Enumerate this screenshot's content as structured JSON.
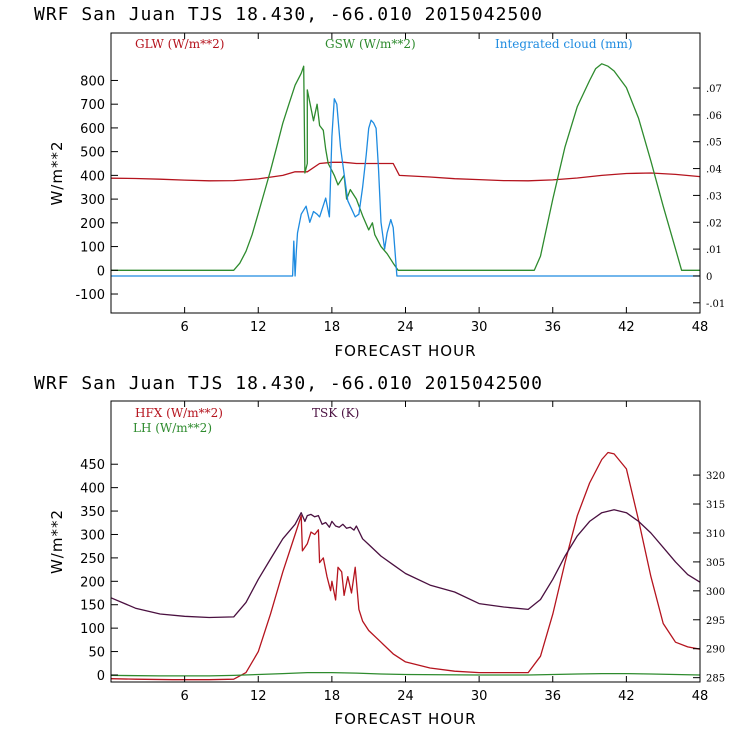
{
  "chart_data": [
    {
      "type": "line",
      "title": "WRF  San Juan TJS  18.430, -66.010  2015042500",
      "xlabel": "FORECAST HOUR",
      "ylabel": "W/m**2",
      "xlim": [
        0,
        48
      ],
      "ylim": [
        -180,
        1000
      ],
      "xticks": [
        6,
        12,
        18,
        24,
        30,
        36,
        42,
        48
      ],
      "yticks": [
        -100,
        0,
        100,
        200,
        300,
        400,
        500,
        600,
        700,
        800
      ],
      "y2lim": [
        -0.0138,
        0.0905
      ],
      "y2ticks": [
        -0.01,
        0,
        0.01,
        0.02,
        0.03,
        0.04,
        0.05,
        0.06,
        0.07
      ],
      "y2ticklabels": [
        "-.01",
        "0",
        ".01",
        ".02",
        ".03",
        ".04",
        ".05",
        ".06",
        ".07"
      ],
      "series": [
        {
          "name": "GLW (W/m**2)",
          "color": "#b5141e",
          "axis": "left",
          "points": [
            [
              0,
              388
            ],
            [
              2,
              387
            ],
            [
              4,
              384
            ],
            [
              6,
              380
            ],
            [
              8,
              377
            ],
            [
              10,
              378
            ],
            [
              12,
              385
            ],
            [
              14,
              400
            ],
            [
              15,
              415
            ],
            [
              16,
              415
            ],
            [
              17,
              450
            ],
            [
              18,
              455
            ],
            [
              19,
              455
            ],
            [
              20,
              450
            ],
            [
              21,
              450
            ],
            [
              22,
              450
            ],
            [
              23,
              450
            ],
            [
              23.5,
              400
            ],
            [
              26,
              393
            ],
            [
              28,
              386
            ],
            [
              30,
              382
            ],
            [
              32,
              378
            ],
            [
              34,
              377
            ],
            [
              36,
              381
            ],
            [
              38,
              389
            ],
            [
              40,
              400
            ],
            [
              42,
              408
            ],
            [
              44,
              410
            ],
            [
              46,
              404
            ],
            [
              48,
              395
            ]
          ]
        },
        {
          "name": "GSW (W/m**2)",
          "color": "#2e8b2e",
          "axis": "left",
          "points": [
            [
              0,
              0
            ],
            [
              10,
              0
            ],
            [
              10.5,
              30
            ],
            [
              11,
              80
            ],
            [
              11.5,
              150
            ],
            [
              12,
              240
            ],
            [
              12.5,
              330
            ],
            [
              13,
              420
            ],
            [
              13.5,
              520
            ],
            [
              14,
              620
            ],
            [
              14.5,
              700
            ],
            [
              15,
              780
            ],
            [
              15.5,
              830
            ],
            [
              15.7,
              860
            ],
            [
              15.8,
              410
            ],
            [
              16,
              450
            ],
            [
              16,
              760
            ],
            [
              16.5,
              630
            ],
            [
              16.8,
              700
            ],
            [
              17,
              610
            ],
            [
              17.3,
              590
            ],
            [
              17.5,
              510
            ],
            [
              17.7,
              450
            ],
            [
              18,
              420
            ],
            [
              18.2,
              400
            ],
            [
              18.5,
              360
            ],
            [
              19,
              400
            ],
            [
              19.2,
              300
            ],
            [
              19.5,
              340
            ],
            [
              20,
              300
            ],
            [
              20.5,
              230
            ],
            [
              21,
              170
            ],
            [
              21.3,
              200
            ],
            [
              21.5,
              150
            ],
            [
              22,
              100
            ],
            [
              22.5,
              70
            ],
            [
              23,
              30
            ],
            [
              23.4,
              0
            ],
            [
              34.5,
              0
            ],
            [
              35,
              60
            ],
            [
              36,
              300
            ],
            [
              37,
              520
            ],
            [
              38,
              690
            ],
            [
              39,
              800
            ],
            [
              39.5,
              850
            ],
            [
              40,
              870
            ],
            [
              40.5,
              860
            ],
            [
              41,
              840
            ],
            [
              42,
              770
            ],
            [
              43,
              640
            ],
            [
              44,
              460
            ],
            [
              45,
              270
            ],
            [
              46,
              90
            ],
            [
              46.5,
              0
            ],
            [
              48,
              0
            ]
          ]
        },
        {
          "name": "Integrated cloud (mm)",
          "color": "#1e8be0",
          "axis": "right",
          "points": [
            [
              0,
              0
            ],
            [
              14.8,
              0
            ],
            [
              14.9,
              0.013
            ],
            [
              15,
              0
            ],
            [
              15.1,
              0.009
            ],
            [
              15.2,
              0.016
            ],
            [
              15.5,
              0.023
            ],
            [
              15.9,
              0.026
            ],
            [
              16.2,
              0.02
            ],
            [
              16.5,
              0.024
            ],
            [
              16.8,
              0.023
            ],
            [
              17,
              0.022
            ],
            [
              17.5,
              0.029
            ],
            [
              17.8,
              0.022
            ],
            [
              18,
              0.052
            ],
            [
              18.2,
              0.066
            ],
            [
              18.4,
              0.064
            ],
            [
              18.7,
              0.048
            ],
            [
              19,
              0.038
            ],
            [
              19.3,
              0.028
            ],
            [
              19.6,
              0.025
            ],
            [
              19.9,
              0.022
            ],
            [
              20.2,
              0.023
            ],
            [
              20.5,
              0.033
            ],
            [
              20.8,
              0.045
            ],
            [
              21,
              0.055
            ],
            [
              21.2,
              0.058
            ],
            [
              21.4,
              0.057
            ],
            [
              21.6,
              0.055
            ],
            [
              21.8,
              0.04
            ],
            [
              22,
              0.02
            ],
            [
              22.3,
              0.01
            ],
            [
              22.5,
              0.016
            ],
            [
              22.8,
              0.021
            ],
            [
              23,
              0.018
            ],
            [
              23.3,
              0
            ],
            [
              48,
              0
            ]
          ]
        }
      ],
      "legend": [
        "GLW (W/m**2)",
        "GSW (W/m**2)",
        "Integrated cloud (mm)"
      ],
      "legend_placement": "top"
    },
    {
      "type": "line",
      "title": "WRF  San Juan TJS  18.430, -66.010  2015042500",
      "xlabel": "FORECAST HOUR",
      "ylabel": "W/m**2",
      "xlim": [
        0,
        48
      ],
      "ylim": [
        -15,
        585
      ],
      "xticks": [
        6,
        12,
        18,
        24,
        30,
        36,
        42,
        48
      ],
      "yticks": [
        0,
        50,
        100,
        150,
        200,
        250,
        300,
        350,
        400,
        450
      ],
      "y2lim": [
        284.25,
        332.8
      ],
      "y2ticks": [
        285,
        290,
        295,
        300,
        305,
        310,
        315,
        320
      ],
      "y2ticklabels": [
        "285",
        "290",
        "295",
        "300",
        "305",
        "310",
        "315",
        "320"
      ],
      "series": [
        {
          "name": "HFX (W/m**2)",
          "color": "#b5141e",
          "axis": "left",
          "points": [
            [
              0,
              -8
            ],
            [
              2,
              -9
            ],
            [
              5,
              -10
            ],
            [
              8,
              -10
            ],
            [
              10,
              -9
            ],
            [
              11,
              5
            ],
            [
              12,
              50
            ],
            [
              13,
              130
            ],
            [
              14,
              220
            ],
            [
              15,
              300
            ],
            [
              15.5,
              340
            ],
            [
              15.6,
              265
            ],
            [
              16,
              280
            ],
            [
              16.3,
              305
            ],
            [
              16.6,
              300
            ],
            [
              16.9,
              310
            ],
            [
              17,
              240
            ],
            [
              17.3,
              250
            ],
            [
              17.6,
              210
            ],
            [
              17.9,
              180
            ],
            [
              18,
              200
            ],
            [
              18.3,
              160
            ],
            [
              18.5,
              230
            ],
            [
              18.8,
              220
            ],
            [
              19,
              170
            ],
            [
              19.3,
              210
            ],
            [
              19.6,
              175
            ],
            [
              19.9,
              230
            ],
            [
              20.2,
              140
            ],
            [
              20.5,
              115
            ],
            [
              21,
              95
            ],
            [
              22,
              70
            ],
            [
              23,
              45
            ],
            [
              24,
              28
            ],
            [
              26,
              15
            ],
            [
              28,
              8
            ],
            [
              30,
              5
            ],
            [
              32,
              5
            ],
            [
              34,
              5
            ],
            [
              35,
              40
            ],
            [
              36,
              130
            ],
            [
              37,
              240
            ],
            [
              38,
              340
            ],
            [
              39,
              410
            ],
            [
              40,
              460
            ],
            [
              40.5,
              475
            ],
            [
              41,
              472
            ],
            [
              42,
              440
            ],
            [
              43,
              330
            ],
            [
              44,
              210
            ],
            [
              45,
              110
            ],
            [
              46,
              70
            ],
            [
              47,
              60
            ],
            [
              48,
              55
            ]
          ]
        },
        {
          "name": "LH (W/m**2)",
          "color": "#2e8b2e",
          "axis": "left",
          "points": [
            [
              0,
              -1
            ],
            [
              4,
              -2
            ],
            [
              8,
              -2
            ],
            [
              10,
              -1
            ],
            [
              12,
              1
            ],
            [
              14,
              3
            ],
            [
              16,
              5
            ],
            [
              18,
              5
            ],
            [
              20,
              4
            ],
            [
              22,
              2
            ],
            [
              24,
              1
            ],
            [
              30,
              0
            ],
            [
              34,
              0
            ],
            [
              36,
              1
            ],
            [
              38,
              2
            ],
            [
              40,
              3
            ],
            [
              42,
              3
            ],
            [
              44,
              2
            ],
            [
              46,
              1
            ],
            [
              48,
              0
            ]
          ]
        },
        {
          "name": "TSK (K)",
          "color": "#4a1040",
          "axis": "right",
          "points": [
            [
              0,
              298.8
            ],
            [
              2,
              297
            ],
            [
              4,
              296
            ],
            [
              6,
              295.6
            ],
            [
              8,
              295.4
            ],
            [
              10,
              295.5
            ],
            [
              11,
              298
            ],
            [
              12,
              302
            ],
            [
              13,
              305.5
            ],
            [
              14,
              309
            ],
            [
              15,
              311.5
            ],
            [
              15.5,
              313.5
            ],
            [
              15.8,
              312
            ],
            [
              16,
              313
            ],
            [
              16.3,
              313.2
            ],
            [
              16.6,
              312.8
            ],
            [
              16.9,
              313
            ],
            [
              17.2,
              311.5
            ],
            [
              17.5,
              311.8
            ],
            [
              17.8,
              311
            ],
            [
              18,
              312
            ],
            [
              18.3,
              311.2
            ],
            [
              18.6,
              311
            ],
            [
              18.9,
              311.5
            ],
            [
              19.2,
              310.8
            ],
            [
              19.5,
              311
            ],
            [
              19.8,
              310.5
            ],
            [
              20,
              311.2
            ],
            [
              20.5,
              309
            ],
            [
              21,
              308
            ],
            [
              22,
              306
            ],
            [
              23,
              304.5
            ],
            [
              24,
              303
            ],
            [
              26,
              301
            ],
            [
              28,
              299.8
            ],
            [
              30,
              297.8
            ],
            [
              32,
              297.2
            ],
            [
              34,
              296.8
            ],
            [
              35,
              298.5
            ],
            [
              36,
              302
            ],
            [
              37,
              306
            ],
            [
              38,
              309.5
            ],
            [
              39,
              312
            ],
            [
              40,
              313.5
            ],
            [
              41,
              314
            ],
            [
              42,
              313.5
            ],
            [
              43,
              312
            ],
            [
              44,
              310
            ],
            [
              45,
              307.5
            ],
            [
              46,
              305
            ],
            [
              47,
              302.8
            ],
            [
              48,
              301.5
            ]
          ]
        }
      ],
      "legend": [
        "HFX (W/m**2)",
        "LH (W/m**2)",
        "TSK (K)"
      ],
      "legend_placement": "top-left"
    }
  ]
}
